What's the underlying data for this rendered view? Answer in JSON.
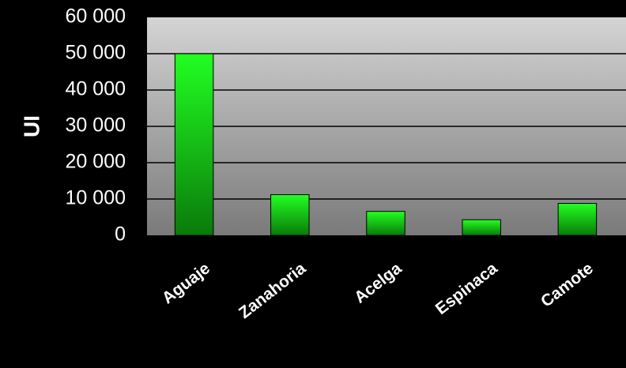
{
  "chart_data": {
    "type": "bar",
    "categories": [
      "Aguaje",
      "Zanahoria",
      "Acelga",
      "Espinaca",
      "Camote"
    ],
    "values": [
      50000,
      11200,
      6600,
      4300,
      8800
    ],
    "ylabel": "UI",
    "ylim": [
      0,
      60000
    ],
    "yticks": [
      0,
      10000,
      20000,
      30000,
      40000,
      50000,
      60000
    ],
    "ytick_labels": [
      "0",
      "10 000",
      "20 000",
      "30 000",
      "40 000",
      "50 000",
      "60 000"
    ],
    "grid": true,
    "legend": "none",
    "colors": {
      "background": "#000000",
      "plot_top": "#d4d4d4",
      "plot_bottom": "#7a7a7a",
      "bar_top": "#22ff22",
      "bar_bottom": "#0a7a0a",
      "gridline": "#000000",
      "text": "#ffffff"
    }
  }
}
